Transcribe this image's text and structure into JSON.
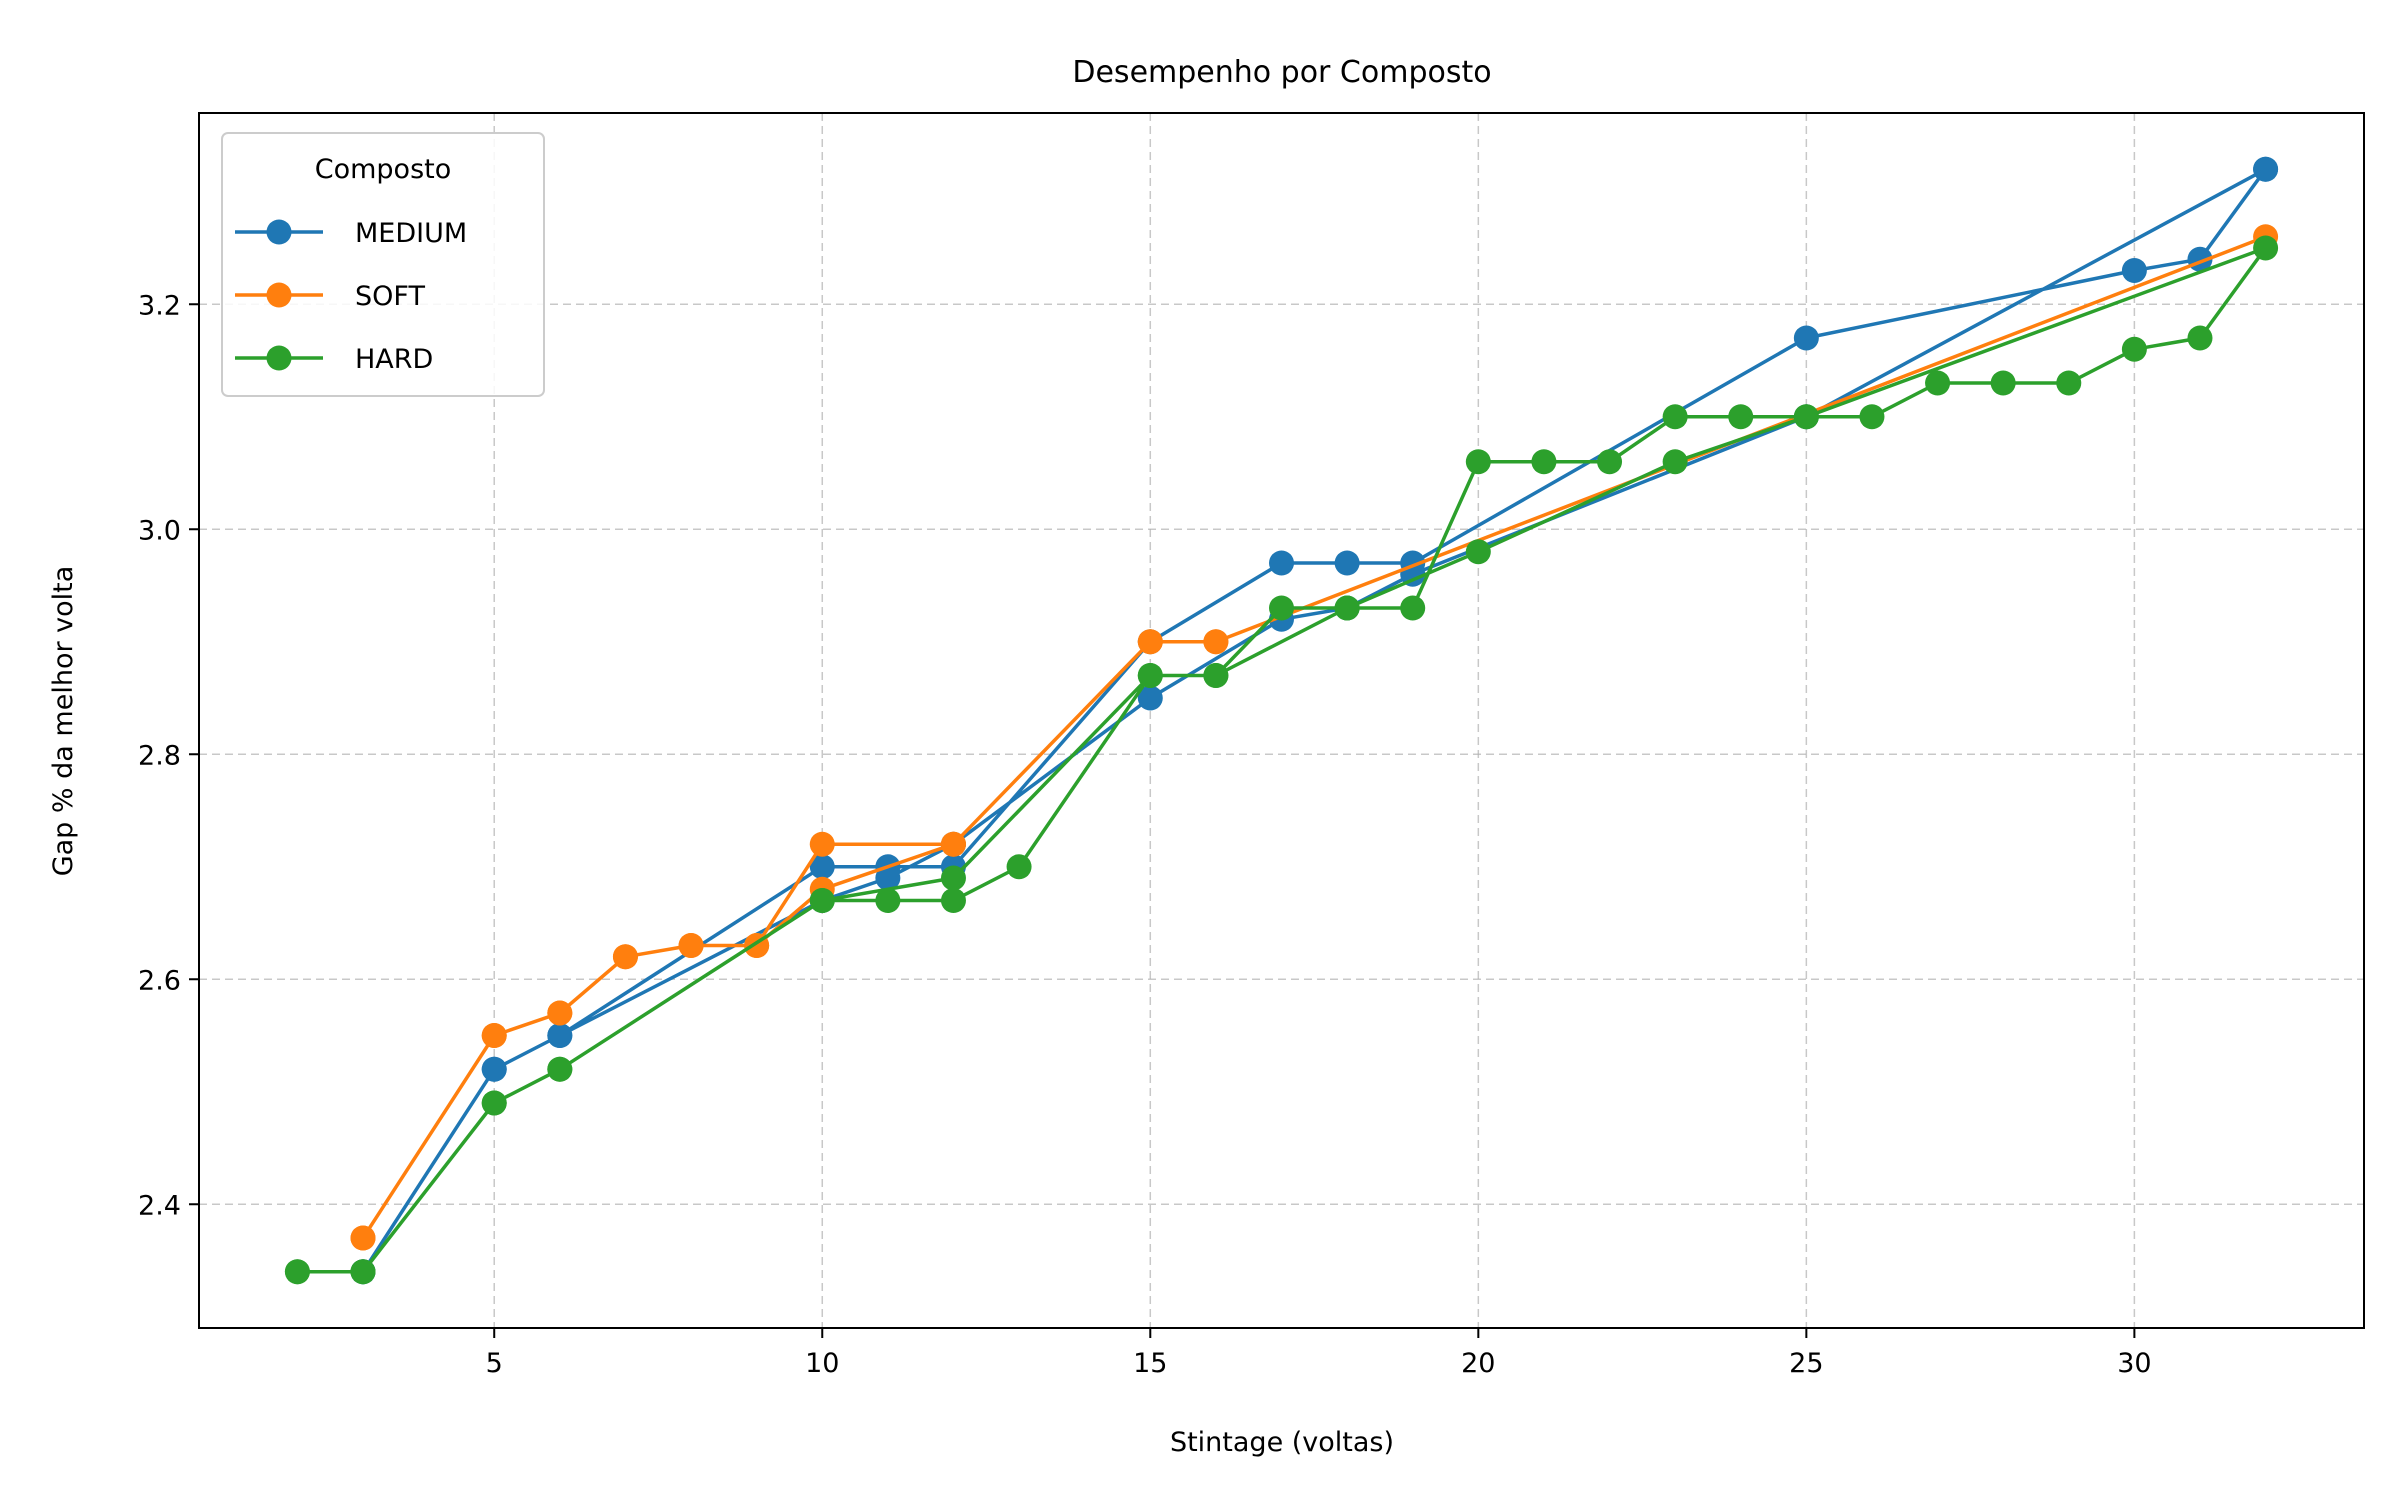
{
  "chart_data": {
    "type": "line",
    "title": "Desempenho por Composto",
    "xlabel": "Stintage (voltas)",
    "ylabel": "Gap % da melhor volta",
    "xlim": [
      0.5,
      33.5
    ],
    "ylim": [
      2.29,
      3.37
    ],
    "x_ticks": [
      5,
      10,
      15,
      20,
      25,
      30
    ],
    "y_ticks": [
      2.4,
      2.6,
      2.8,
      3.0,
      3.2
    ],
    "y_tick_labels": [
      "2.4",
      "2.6",
      "2.8",
      "3.0",
      "3.2"
    ],
    "grid": true,
    "legend": {
      "title": "Composto",
      "position": "top-left"
    },
    "series": [
      {
        "name": "MEDIUM",
        "color": "#1f77b4",
        "x": [
          3,
          5,
          6,
          10,
          11,
          12,
          15,
          17,
          18,
          19,
          25,
          30,
          31,
          32,
          32,
          25,
          19,
          18,
          17,
          15,
          12,
          11,
          10,
          6,
          5,
          3
        ],
        "y": [
          2.34,
          2.52,
          2.55,
          2.7,
          2.7,
          2.7,
          2.9,
          2.97,
          2.97,
          2.97,
          3.17,
          3.23,
          3.24,
          3.32,
          3.32,
          3.1,
          2.96,
          2.93,
          2.92,
          2.85,
          2.72,
          2.69,
          2.67,
          2.55,
          2.52,
          2.34
        ]
      },
      {
        "name": "SOFT",
        "color": "#ff7f0e",
        "x": [
          3,
          5,
          6,
          7,
          8,
          9,
          10,
          12,
          15,
          16,
          32,
          16,
          15,
          12,
          10,
          9,
          8,
          7,
          6,
          5,
          3
        ],
        "y": [
          2.37,
          2.55,
          2.57,
          2.62,
          2.63,
          2.63,
          2.72,
          2.72,
          2.9,
          2.9,
          3.26,
          2.9,
          2.9,
          2.72,
          2.68,
          2.63,
          2.63,
          2.62,
          2.57,
          2.55,
          2.37
        ]
      },
      {
        "name": "HARD",
        "color": "#2ca02c",
        "x": [
          2,
          3,
          5,
          6,
          10,
          11,
          12,
          13,
          15,
          16,
          17,
          18,
          19,
          20,
          21,
          22,
          23,
          24,
          25,
          26,
          27,
          28,
          29,
          30,
          31,
          32,
          25,
          23,
          20,
          18,
          16,
          15,
          12,
          10,
          6,
          5,
          3,
          2
        ],
        "y": [
          2.34,
          2.34,
          2.49,
          2.52,
          2.67,
          2.67,
          2.67,
          2.7,
          2.87,
          2.87,
          2.93,
          2.93,
          2.93,
          3.06,
          3.06,
          3.06,
          3.1,
          3.1,
          3.1,
          3.1,
          3.13,
          3.13,
          3.13,
          3.16,
          3.17,
          3.25,
          3.1,
          3.06,
          2.98,
          2.93,
          2.87,
          2.87,
          2.69,
          2.67,
          2.52,
          2.49,
          2.34,
          2.34
        ]
      }
    ]
  }
}
